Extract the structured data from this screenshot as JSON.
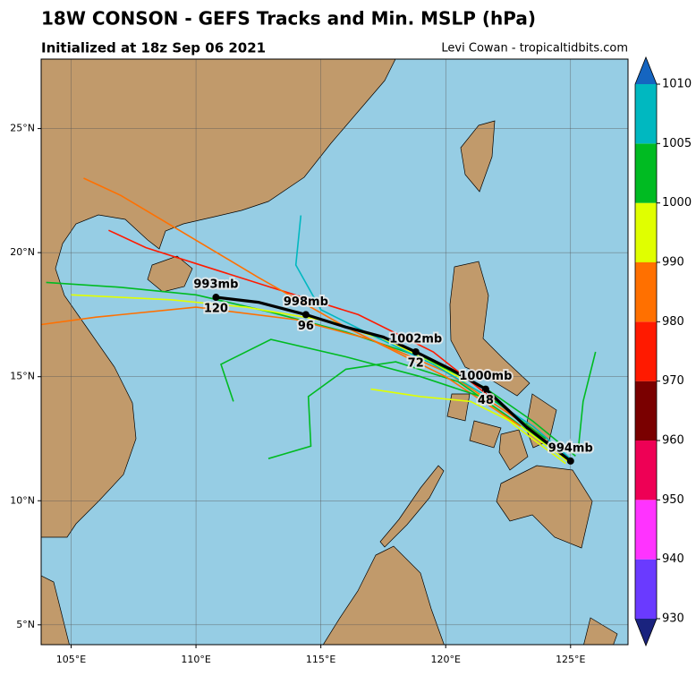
{
  "title": "18W CONSON - GEFS Tracks and Min. MSLP (hPa)",
  "subtitle": "Initialized at 18z Sep 06 2021",
  "credit": "Levi Cowan - tropicaltidbits.com",
  "map": {
    "xlim": [
      103.8,
      127.3
    ],
    "ylim": [
      4.2,
      27.8
    ],
    "xticks": [
      {
        "value": 105,
        "label": "105°E"
      },
      {
        "value": 110,
        "label": "110°E"
      },
      {
        "value": 115,
        "label": "115°E"
      },
      {
        "value": 120,
        "label": "120°E"
      },
      {
        "value": 125,
        "label": "125°E"
      }
    ],
    "yticks": [
      {
        "value": 5,
        "label": "5°N"
      },
      {
        "value": 10,
        "label": "10°N"
      },
      {
        "value": 15,
        "label": "15°N"
      },
      {
        "value": 20,
        "label": "20°N"
      },
      {
        "value": 25,
        "label": "25°N"
      }
    ],
    "grid": true,
    "member_tracks": [
      {
        "color": "#00bb22",
        "points": [
          [
            125.2,
            11.8
          ],
          [
            123.5,
            13.2
          ],
          [
            121.5,
            14.6
          ],
          [
            119,
            15.8
          ],
          [
            116,
            16.8
          ],
          [
            113,
            17.6
          ],
          [
            110,
            18.3
          ],
          [
            107,
            18.6
          ],
          [
            104,
            18.8
          ]
        ]
      },
      {
        "color": "#e0ff00",
        "points": [
          [
            124.8,
            11.5
          ],
          [
            122.8,
            13
          ],
          [
            120.5,
            15
          ],
          [
            118,
            16.3
          ],
          [
            115.5,
            17.2
          ],
          [
            112,
            17.8
          ],
          [
            109,
            18.1
          ],
          [
            105,
            18.3
          ]
        ]
      },
      {
        "color": "#ff7000",
        "points": [
          [
            125,
            11.6
          ],
          [
            123,
            13.2
          ],
          [
            120,
            15.2
          ],
          [
            117,
            16.5
          ],
          [
            114,
            17.3
          ],
          [
            110,
            17.8
          ],
          [
            106,
            17.4
          ],
          [
            103.8,
            17.1
          ]
        ]
      },
      {
        "color": "#ff1a00",
        "points": [
          [
            124.5,
            12
          ],
          [
            122,
            14
          ],
          [
            119.5,
            16
          ],
          [
            116.5,
            17.5
          ],
          [
            113,
            18.6
          ],
          [
            110.5,
            19.4
          ],
          [
            108,
            20.2
          ],
          [
            106.5,
            20.9
          ]
        ]
      },
      {
        "color": "#00bb22",
        "points": [
          [
            124.8,
            11.7
          ],
          [
            122.5,
            13.4
          ],
          [
            120.5,
            14.8
          ],
          [
            118,
            15.6
          ],
          [
            116,
            15.3
          ],
          [
            114.5,
            14.2
          ],
          [
            114.6,
            12.2
          ],
          [
            112.9,
            11.7
          ]
        ]
      },
      {
        "color": "#e0ff00",
        "points": [
          [
            125,
            11.5
          ],
          [
            123,
            13
          ],
          [
            121,
            14
          ],
          [
            119,
            14.2
          ],
          [
            117,
            14.5
          ]
        ]
      },
      {
        "color": "#00b8c0",
        "points": [
          [
            125.1,
            11.6
          ],
          [
            123.5,
            13
          ],
          [
            121.5,
            14.3
          ],
          [
            119.5,
            15.5
          ],
          [
            117,
            16.7
          ],
          [
            115,
            17.7
          ],
          [
            114,
            19.5
          ],
          [
            114.2,
            21.5
          ]
        ]
      },
      {
        "color": "#00bb22",
        "points": [
          [
            125.3,
            12
          ],
          [
            125.5,
            14
          ],
          [
            126,
            16
          ]
        ]
      },
      {
        "color": "#ff7000",
        "points": [
          [
            123,
            13
          ],
          [
            120,
            15
          ],
          [
            116,
            17
          ],
          [
            112.5,
            19
          ],
          [
            110,
            20.5
          ],
          [
            107,
            22.3
          ],
          [
            105.5,
            23
          ]
        ]
      },
      {
        "color": "#00bb22",
        "points": [
          [
            124,
            12.5
          ],
          [
            122,
            14
          ],
          [
            119,
            15
          ],
          [
            116,
            15.8
          ],
          [
            113,
            16.5
          ],
          [
            111,
            15.5
          ],
          [
            111.5,
            14
          ]
        ]
      }
    ],
    "mean_track": [
      {
        "lon": 125.0,
        "lat": 11.6,
        "pressure": {
          "value": 994,
          "label": "994mb"
        }
      },
      {
        "lon": 123.2,
        "lat": 13.0
      },
      {
        "lon": 121.6,
        "lat": 14.5,
        "pressure": {
          "value": 1000,
          "label": "1000mb"
        },
        "hour": 48
      },
      {
        "lon": 120.2,
        "lat": 15.3
      },
      {
        "lon": 118.8,
        "lat": 16.0,
        "pressure": {
          "value": 1002,
          "label": "1002mb"
        },
        "hour": 72
      },
      {
        "lon": 117.5,
        "lat": 16.6
      },
      {
        "lon": 116.0,
        "lat": 17.0
      },
      {
        "lon": 114.4,
        "lat": 17.5,
        "pressure": {
          "value": 998,
          "label": "998mb"
        },
        "hour": 96
      },
      {
        "lon": 112.5,
        "lat": 18.0
      },
      {
        "lon": 110.8,
        "lat": 18.2,
        "pressure": {
          "value": 993,
          "label": "993mb"
        },
        "hour": 120
      }
    ]
  },
  "colorbar": {
    "levels": [
      930,
      940,
      950,
      960,
      970,
      980,
      990,
      1000,
      1005,
      1010
    ],
    "colors": [
      "#6a3aff",
      "#ff33ff",
      "#ee0055",
      "#7a0000",
      "#ff1a00",
      "#ff7000",
      "#e0ff00",
      "#00bb22",
      "#00b8c0"
    ],
    "under_color": "#1a237e",
    "over_color": "#1565c0"
  }
}
